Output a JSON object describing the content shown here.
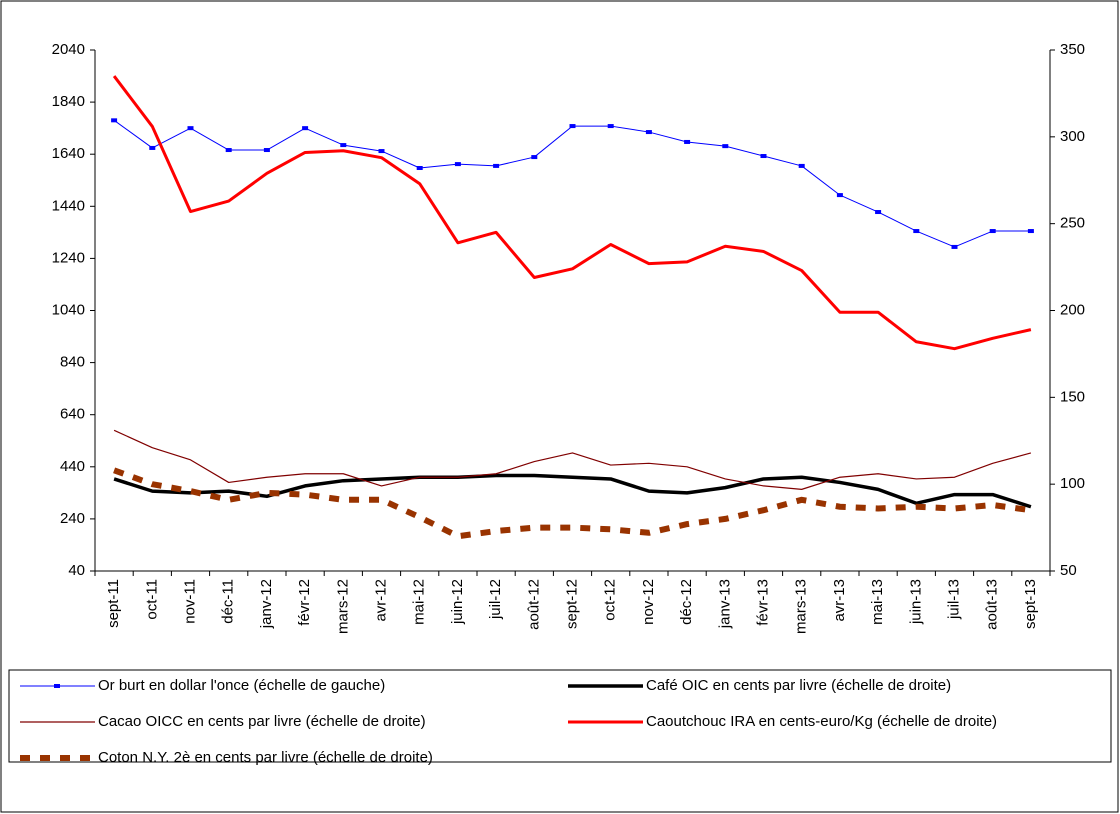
{
  "chart_data": {
    "type": "line",
    "categories": [
      "sept-11",
      "oct-11",
      "nov-11",
      "déc-11",
      "janv-12",
      "févr-12",
      "mars-12",
      "avr-12",
      "mai-12",
      "juin-12",
      "juil-12",
      "août-12",
      "sept-12",
      "oct-12",
      "nov-12",
      "déc-12",
      "janv-13",
      "févr-13",
      "mars-13",
      "avr-13",
      "mai-13",
      "juin-13",
      "juil-13",
      "août-13",
      "sept-13"
    ],
    "ylim": [
      40,
      2040
    ],
    "yticks": [
      40,
      240,
      440,
      640,
      840,
      1040,
      1240,
      1440,
      1640,
      1840,
      2040
    ],
    "y2lim": [
      50,
      350
    ],
    "y2ticks": [
      50,
      100,
      150,
      200,
      250,
      300,
      350
    ],
    "legend": "bottom",
    "series": [
      {
        "name": "Or burt en dollar l'once (échelle de gauche)",
        "color": "#0000ff",
        "marker": "square",
        "values": [
          1770,
          1664,
          1740,
          1656,
          1656,
          1740,
          1675,
          1652,
          1587,
          1602,
          1595,
          1629,
          1748,
          1748,
          1725,
          1687,
          1671,
          1633,
          1595,
          1483,
          1418,
          1345,
          1284,
          1345,
          1345
        ]
      },
      {
        "name": "Café  OIC en cents par livre (échelle de droite)",
        "color": "#000000",
        "axis": "y2",
        "values": [
          103,
          96,
          95,
          96,
          93,
          99,
          102,
          103,
          104,
          104,
          105,
          105,
          104,
          103,
          96,
          95,
          98,
          103,
          104,
          101,
          97,
          89,
          94,
          94,
          87
        ]
      },
      {
        "name": "Cacao OICC en cents par livre (échelle de droite)",
        "color": "#800000",
        "axis": "y2",
        "values": [
          131,
          121,
          114,
          101,
          104,
          106,
          106,
          99,
          104,
          104,
          106,
          113,
          118,
          111,
          112,
          110,
          103,
          99,
          97,
          104,
          106,
          103,
          104,
          112,
          118
        ]
      },
      {
        "name": "Caoutchouc IRA en cents-euro/Kg (échelle de droite)",
        "color": "#ff0000",
        "axis": "y2",
        "values": [
          335,
          306,
          257,
          263,
          279,
          291,
          292,
          288,
          273,
          239,
          245,
          219,
          224,
          238,
          227,
          228,
          237,
          234,
          223,
          199,
          199,
          182,
          178,
          184,
          189
        ]
      },
      {
        "name": "Coton N.Y. 2è en cents par livre (échelle de droite)",
        "color": "#993300",
        "axis": "y2",
        "dashed": true,
        "values": [
          108,
          100,
          96,
          91,
          95,
          94,
          91,
          91,
          81,
          70,
          73,
          75,
          75,
          74,
          72,
          77,
          80,
          85,
          91,
          87,
          86,
          87,
          86,
          88,
          85
        ]
      }
    ]
  }
}
